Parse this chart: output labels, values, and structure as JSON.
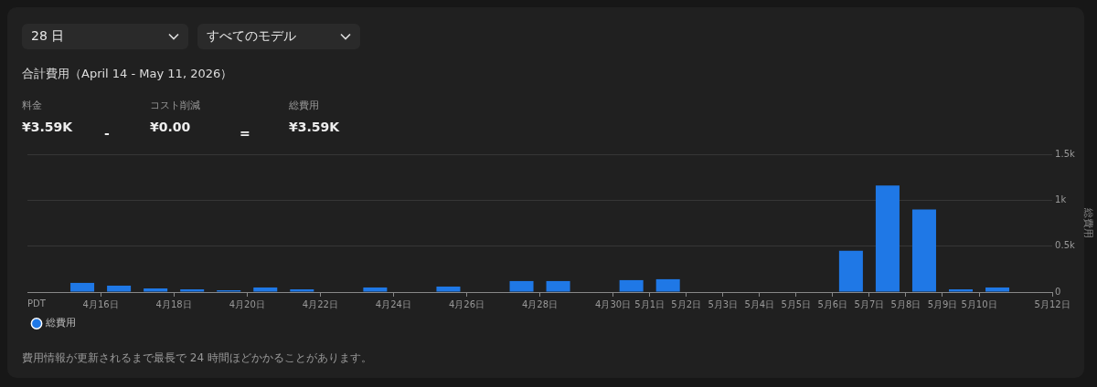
{
  "chart_data": {
    "type": "bar",
    "title": "合計費用（April 14 - May 11, 2026）",
    "ylabel": "総費用",
    "annotations": [
      "28 日",
      "すべてのモデル",
      "料金",
      "¥3.59K",
      "-",
      "コスト削減",
      "¥0.00",
      "=",
      "総費用",
      "¥3.59K",
      "費用情報が更新されるまで最長で 24 時間ほどかかることがあります。",
      "PDT"
    ],
    "x": [
      "2026-04-14T12:00",
      "2026-04-15T12:00",
      "2026-04-16T12:00",
      "2026-04-17T12:00",
      "2026-04-18T12:00",
      "2026-04-19T12:00",
      "2026-04-20T12:00",
      "2026-04-21T12:00",
      "2026-04-22T12:00",
      "2026-04-23T12:00",
      "2026-04-24T12:00",
      "2026-04-25T12:00",
      "2026-04-26T12:00",
      "2026-04-27T12:00",
      "2026-04-28T12:00",
      "2026-04-29T12:00",
      "2026-04-30T12:00",
      "2026-05-01T12:00",
      "2026-05-02T12:00",
      "2026-05-03T12:00",
      "2026-05-04T12:00",
      "2026-05-05T12:00",
      "2026-05-06T12:00",
      "2026-05-07T12:00",
      "2026-05-08T12:00",
      "2026-05-09T12:00",
      "2026-05-10T12:00",
      "2026-05-11T12:00"
    ],
    "series": [
      {
        "name": "総費用",
        "color": "#1f78e6",
        "values": [
          0,
          100,
          70,
          40,
          30,
          20,
          50,
          30,
          0,
          50,
          0,
          60,
          0,
          120,
          120,
          0,
          130,
          140,
          0,
          0,
          0,
          0,
          450,
          1160,
          900,
          30,
          50,
          0
        ]
      }
    ],
    "xlim": [
      "2026-04-14",
      "2026-05-12"
    ],
    "xticks": [
      {
        "value": "2026-04-16",
        "label": "4月16日"
      },
      {
        "value": "2026-04-18",
        "label": "4月18日"
      },
      {
        "value": "2026-04-20",
        "label": "4月20日"
      },
      {
        "value": "2026-04-22",
        "label": "4月22日"
      },
      {
        "value": "2026-04-24",
        "label": "4月24日"
      },
      {
        "value": "2026-04-26",
        "label": "4月26日"
      },
      {
        "value": "2026-04-28",
        "label": "4月28日"
      },
      {
        "value": "2026-04-30",
        "label": "4月30日"
      },
      {
        "value": "2026-05-01",
        "label": "5月1日"
      },
      {
        "value": "2026-05-02",
        "label": "5月2日"
      },
      {
        "value": "2026-05-03",
        "label": "5月3日"
      },
      {
        "value": "2026-05-04",
        "label": "5月4日"
      },
      {
        "value": "2026-05-05",
        "label": "5月5日"
      },
      {
        "value": "2026-05-06",
        "label": "5月6日"
      },
      {
        "value": "2026-05-07",
        "label": "5月7日"
      },
      {
        "value": "2026-05-08",
        "label": "5月8日"
      },
      {
        "value": "2026-05-09",
        "label": "5月9日"
      },
      {
        "value": "2026-05-10",
        "label": "5月10日"
      },
      {
        "value": "2026-05-12",
        "label": "5月12日"
      }
    ],
    "ylim": [
      0,
      1500
    ],
    "yticks": [
      0,
      {
        "value": 500,
        "label": "0.5k"
      },
      {
        "value": 1000,
        "label": "1k"
      },
      {
        "value": 1500,
        "label": "1.5k"
      }
    ],
    "grid": "y",
    "legend": "bottom left"
  }
}
